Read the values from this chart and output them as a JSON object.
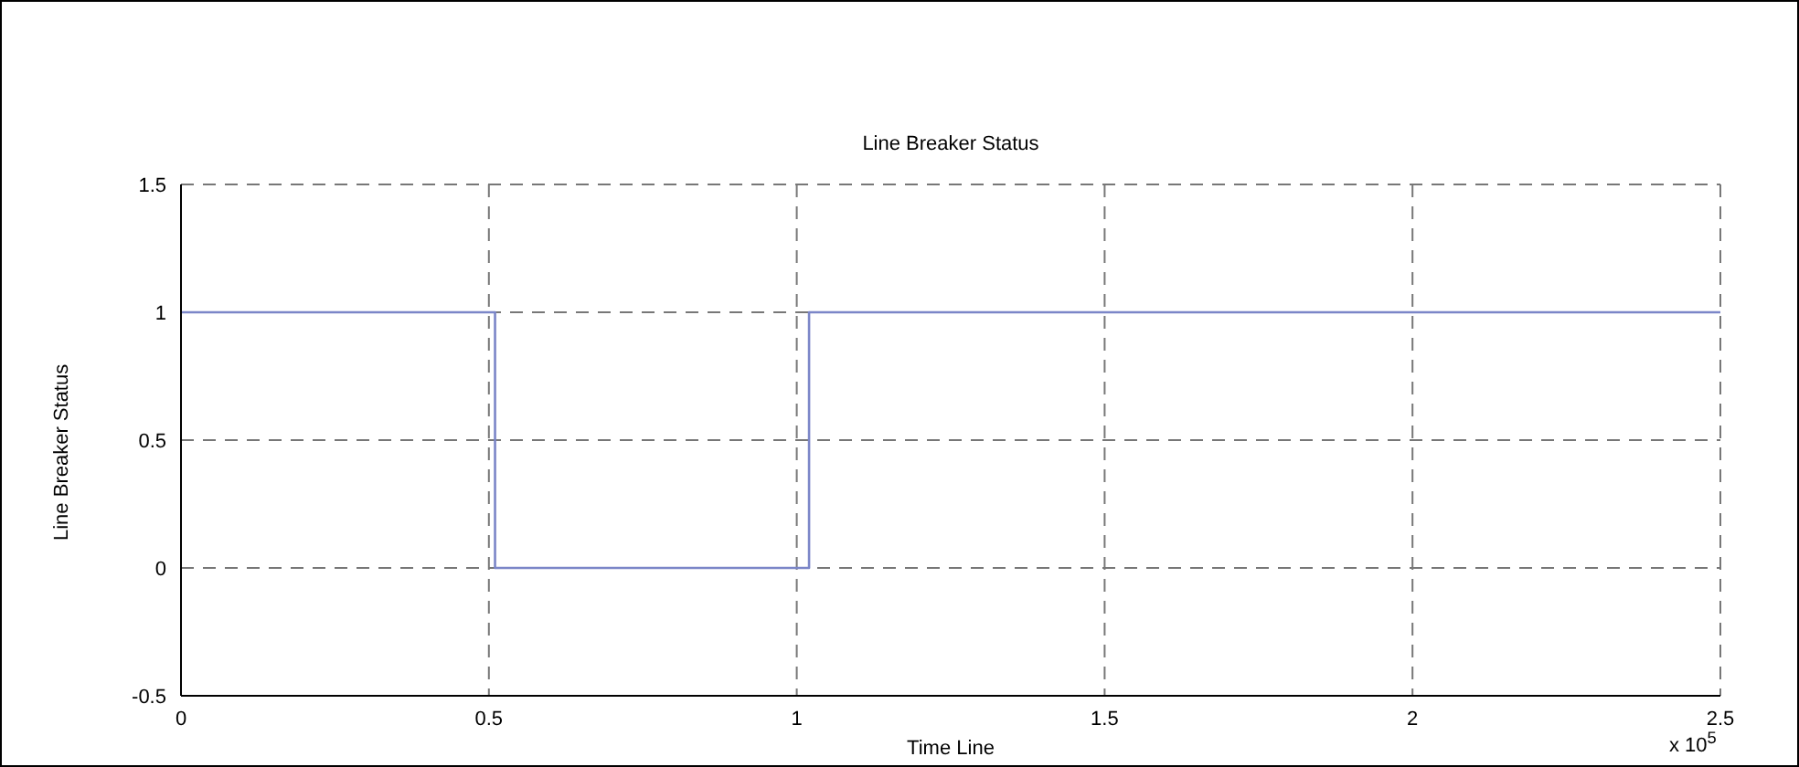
{
  "chart_data": {
    "type": "step",
    "title": "Line Breaker Status",
    "xlabel": "Time Line",
    "ylabel": "Line Breaker Status",
    "x": [
      0,
      0.51,
      1.02,
      2.5
    ],
    "series": [
      {
        "color": "#7b86c8",
        "values": [
          1,
          0,
          1,
          1
        ]
      }
    ],
    "xlim": [
      0,
      2.5
    ],
    "xticks": [
      0,
      0.5,
      1,
      1.5,
      2,
      2.5
    ],
    "ylim": [
      -0.5,
      1.5
    ],
    "yticks": [
      -0.5,
      0,
      0.5,
      1,
      1.5
    ],
    "grid": true,
    "line_style": "solid",
    "annotations": [
      "x 10$^{5}$"
    ]
  }
}
